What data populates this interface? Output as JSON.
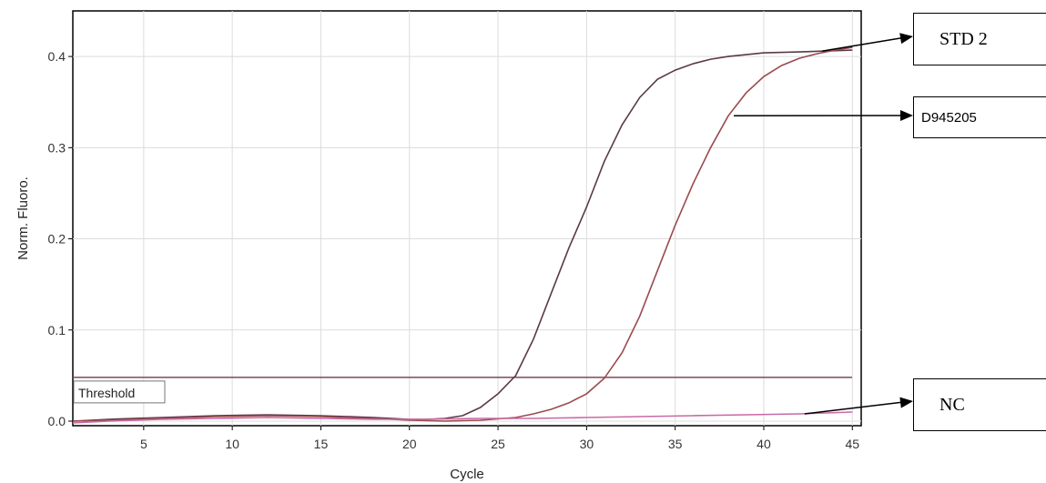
{
  "chart_data": {
    "type": "line",
    "xlabel": "Cycle",
    "ylabel": "Norm. Fluoro.",
    "xlim": [
      1,
      45.5
    ],
    "ylim": [
      -0.005,
      0.45
    ],
    "xticks": [
      "5",
      "10",
      "15",
      "20",
      "25",
      "30",
      "35",
      "40",
      "45"
    ],
    "yticks": [
      "0.0",
      "0.1",
      "0.2",
      "0.3",
      "0.4"
    ],
    "grid": true,
    "threshold": {
      "label": "Threshold",
      "value": 0.048
    },
    "series": [
      {
        "name": "STD 2",
        "color": "#5a3a48",
        "points": [
          [
            1,
            0.0
          ],
          [
            3,
            0.002
          ],
          [
            6,
            0.004
          ],
          [
            9,
            0.006
          ],
          [
            12,
            0.007
          ],
          [
            15,
            0.006
          ],
          [
            18,
            0.004
          ],
          [
            20,
            0.002
          ],
          [
            21,
            0.002
          ],
          [
            22,
            0.003
          ],
          [
            23,
            0.006
          ],
          [
            24,
            0.015
          ],
          [
            25,
            0.03
          ],
          [
            26,
            0.05
          ],
          [
            27,
            0.09
          ],
          [
            28,
            0.14
          ],
          [
            29,
            0.19
          ],
          [
            30,
            0.235
          ],
          [
            31,
            0.285
          ],
          [
            32,
            0.325
          ],
          [
            33,
            0.355
          ],
          [
            34,
            0.375
          ],
          [
            35,
            0.385
          ],
          [
            36,
            0.392
          ],
          [
            37,
            0.397
          ],
          [
            38,
            0.4
          ],
          [
            40,
            0.404
          ],
          [
            42,
            0.405
          ],
          [
            45,
            0.407
          ]
        ]
      },
      {
        "name": "D945205",
        "color": "#9a4a4e",
        "points": [
          [
            1,
            0.0
          ],
          [
            3,
            0.001
          ],
          [
            6,
            0.003
          ],
          [
            9,
            0.005
          ],
          [
            12,
            0.006
          ],
          [
            15,
            0.005
          ],
          [
            18,
            0.003
          ],
          [
            20,
            0.001
          ],
          [
            22,
            0.0
          ],
          [
            24,
            0.001
          ],
          [
            26,
            0.004
          ],
          [
            27,
            0.008
          ],
          [
            28,
            0.013
          ],
          [
            29,
            0.02
          ],
          [
            30,
            0.03
          ],
          [
            31,
            0.047
          ],
          [
            32,
            0.075
          ],
          [
            33,
            0.115
          ],
          [
            34,
            0.165
          ],
          [
            35,
            0.215
          ],
          [
            36,
            0.26
          ],
          [
            37,
            0.3
          ],
          [
            38,
            0.335
          ],
          [
            39,
            0.36
          ],
          [
            40,
            0.378
          ],
          [
            41,
            0.39
          ],
          [
            42,
            0.398
          ],
          [
            43,
            0.403
          ],
          [
            44,
            0.407
          ],
          [
            45,
            0.41
          ]
        ]
      },
      {
        "name": "NC",
        "color": "#c96aa4",
        "points": [
          [
            1,
            -0.002
          ],
          [
            3,
            0.0
          ],
          [
            6,
            0.002
          ],
          [
            9,
            0.003
          ],
          [
            12,
            0.004
          ],
          [
            15,
            0.003
          ],
          [
            18,
            0.002
          ],
          [
            21,
            0.002
          ],
          [
            24,
            0.003
          ],
          [
            27,
            0.003
          ],
          [
            30,
            0.004
          ],
          [
            33,
            0.005
          ],
          [
            36,
            0.006
          ],
          [
            39,
            0.007
          ],
          [
            42,
            0.008
          ],
          [
            45,
            0.01
          ]
        ]
      }
    ],
    "callouts": [
      {
        "label": "STD 2",
        "series": "STD 2",
        "point": [
          43,
          0.406
        ]
      },
      {
        "label": "D945205",
        "series": "D945205",
        "point": [
          38,
          0.335
        ]
      },
      {
        "label": "NC",
        "series": "NC",
        "point": [
          42,
          0.008
        ]
      }
    ]
  },
  "colors": {
    "axis": "#000000",
    "grid": "#dcdcdc",
    "threshold": "#7a4a5a"
  }
}
